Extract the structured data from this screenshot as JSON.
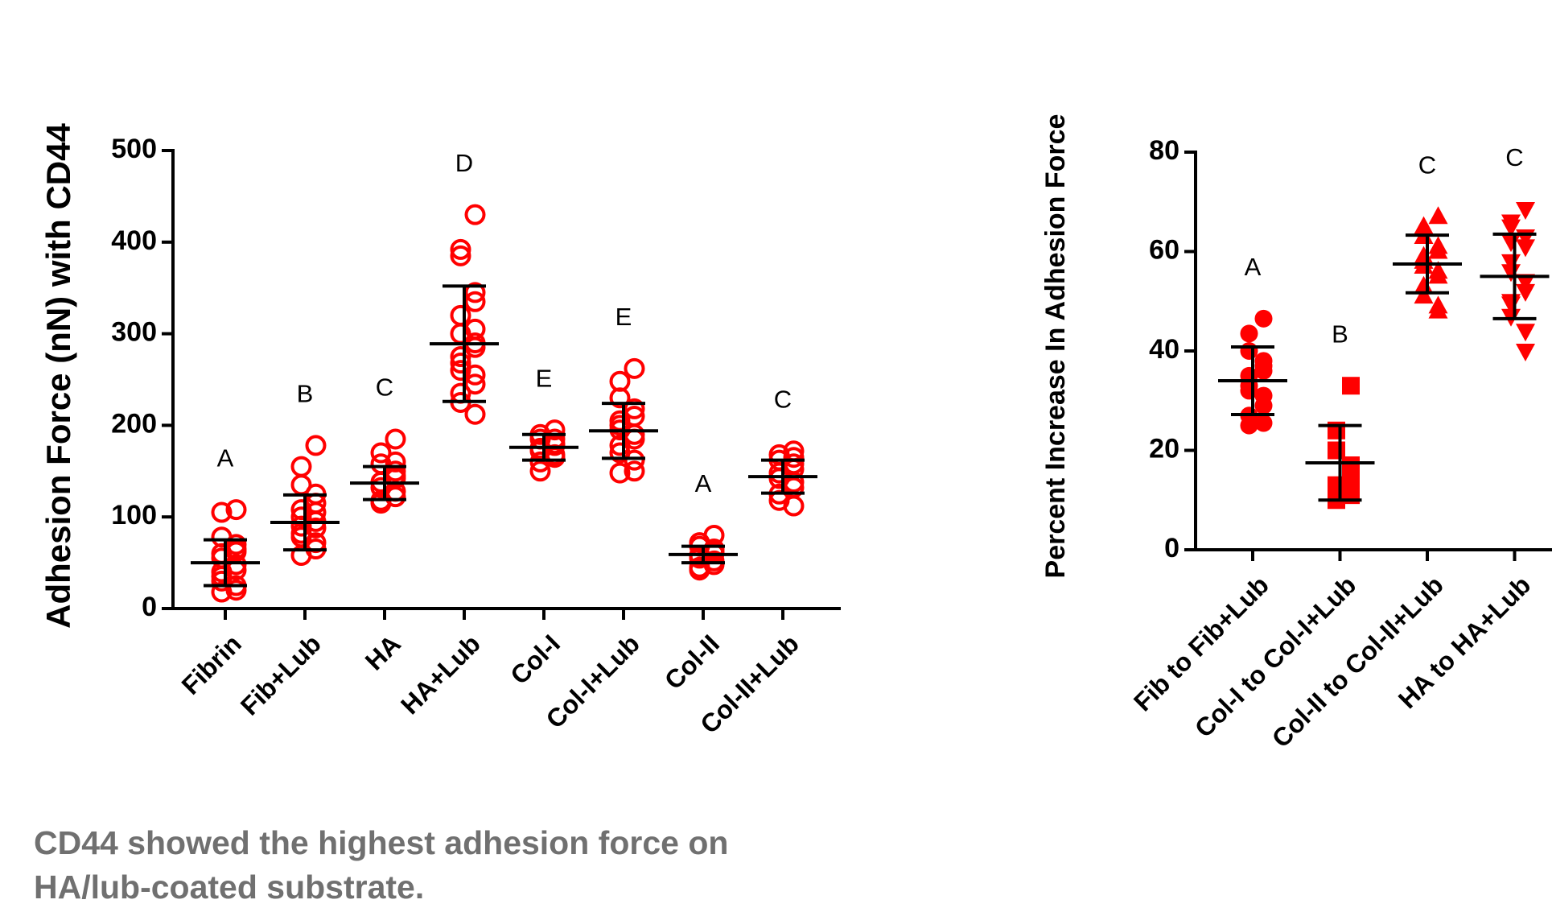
{
  "chart_data": [
    {
      "type": "dot",
      "y_label": "Adhesion Force (nN) with CD44",
      "categories": [
        "Fibrin",
        "Fib+Lub",
        "HA",
        "HA+Lub",
        "Col-I",
        "Col-I+Lub",
        "Col-II",
        "Col-II+Lub"
      ],
      "letters": [
        "A",
        "B",
        "C",
        "D",
        "E",
        "E",
        "A",
        "C"
      ],
      "color": "#ff0000",
      "marker": "open-circle",
      "points": [
        [
          108,
          105,
          78,
          70,
          65,
          60,
          55,
          48,
          42,
          35,
          30,
          25,
          20,
          18,
          40,
          62
        ],
        [
          178,
          155,
          135,
          125,
          115,
          108,
          100,
          95,
          88,
          82,
          78,
          72,
          65,
          58,
          90,
          105
        ],
        [
          185,
          170,
          158,
          150,
          142,
          138,
          132,
          128,
          122,
          118,
          115,
          145,
          160
        ],
        [
          430,
          392,
          385,
          345,
          335,
          320,
          300,
          290,
          285,
          275,
          268,
          255,
          245,
          235,
          225,
          212,
          305,
          260
        ],
        [
          195,
          190,
          185,
          180,
          178,
          175,
          172,
          168,
          165,
          160,
          150,
          185
        ],
        [
          262,
          248,
          230,
          218,
          210,
          200,
          195,
          190,
          185,
          178,
          170,
          162,
          150,
          148,
          205
        ],
        [
          80,
          72,
          68,
          62,
          60,
          58,
          55,
          52,
          48,
          45,
          42,
          65
        ],
        [
          172,
          168,
          162,
          158,
          152,
          148,
          142,
          138,
          132,
          125,
          118,
          112,
          165
        ]
      ],
      "means": [
        50,
        94,
        137,
        289,
        176,
        194,
        59,
        144
      ],
      "sd": [
        25,
        30,
        18,
        63,
        14,
        30,
        9,
        18
      ],
      "ylim": [
        0,
        500
      ],
      "yticks": [
        0,
        100,
        200,
        300,
        400,
        500
      ]
    },
    {
      "type": "dot",
      "y_label": "Percent Increase In Adhesion Force",
      "categories": [
        "Fib to Fib+Lub",
        "Col-I to Col-I+Lub",
        "Col-II to Col-II+Lub",
        "HA to HA+Lub"
      ],
      "letters": [
        "A",
        "B",
        "C",
        "C"
      ],
      "color": "#ff0000",
      "markers": [
        "circle",
        "square",
        "triangle-up",
        "triangle-down"
      ],
      "points": [
        [
          46.5,
          43.5,
          40,
          38,
          36,
          35,
          33,
          31,
          29,
          27,
          25,
          25.5,
          37,
          32
        ],
        [
          33,
          24,
          20,
          17,
          14,
          13,
          12,
          11,
          11,
          10.5,
          10,
          15
        ],
        [
          67,
          65,
          63,
          61,
          60,
          58,
          57,
          56,
          55,
          53,
          51,
          49,
          48,
          59
        ],
        [
          68.5,
          66,
          65,
          63,
          61,
          58,
          56,
          54,
          52,
          50,
          47,
          44,
          40,
          49.5,
          62
        ]
      ],
      "means": [
        34,
        17.5,
        57.5,
        55
      ],
      "sd": [
        6.8,
        7.5,
        5.8,
        8.5
      ],
      "ylim": [
        0,
        80
      ],
      "yticks": [
        0,
        20,
        40,
        60,
        80
      ]
    }
  ],
  "caption": [
    "CD44 showed the highest adhesion force on",
    "HA/lub-coated substrate."
  ]
}
